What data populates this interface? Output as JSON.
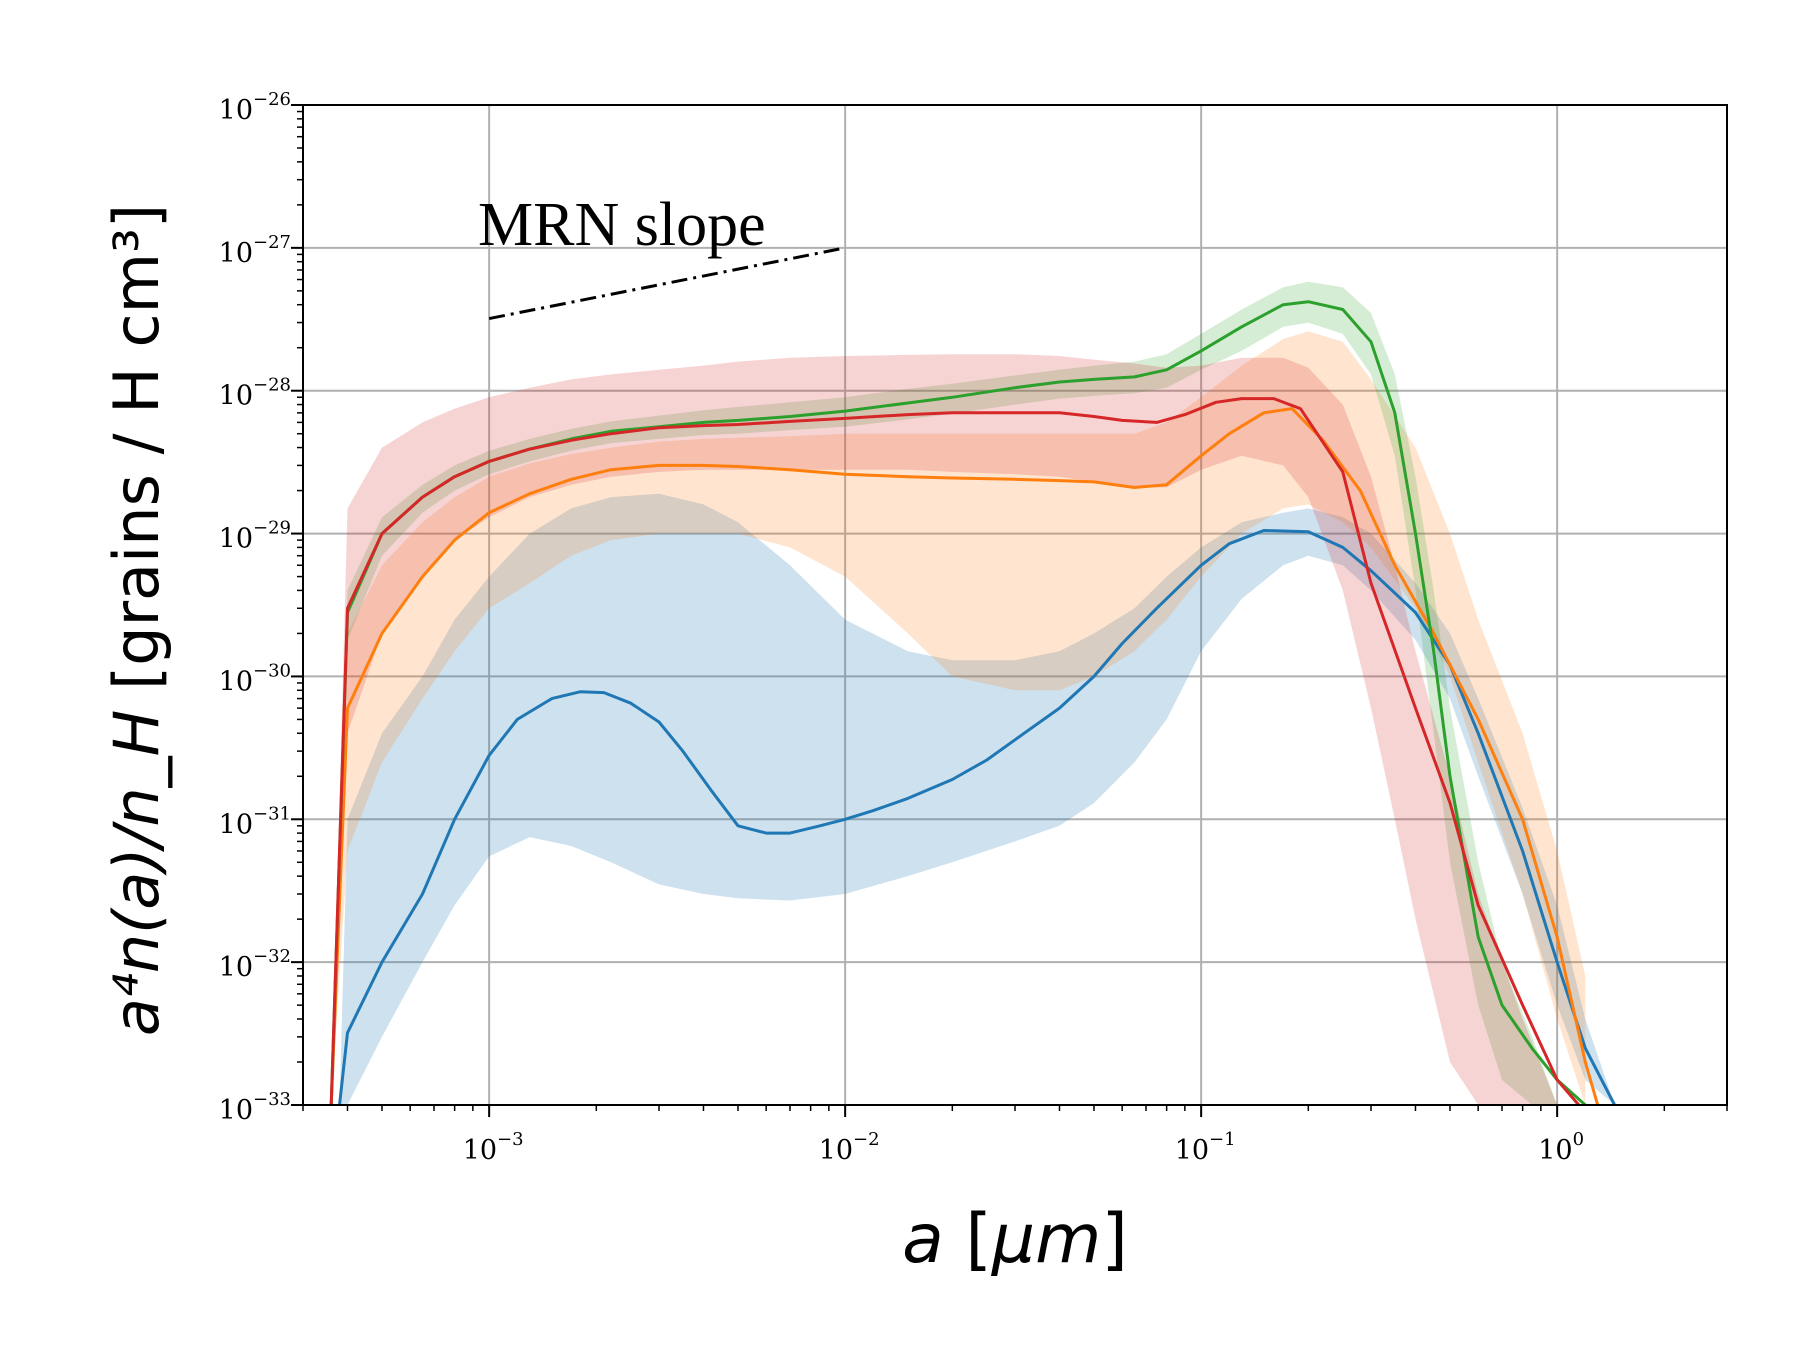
{
  "chart_data": {
    "type": "line",
    "xscale": "log",
    "yscale": "log",
    "xlim": [
      0.0003,
      3.0
    ],
    "ylim": [
      1e-33,
      1e-26
    ],
    "xlabel": {
      "var": "a",
      "unit": "μm"
    },
    "ylabel": {
      "text": "a⁴n(a)/n_H",
      "unit": "grains / H cm³"
    },
    "grid": true,
    "x_tick_exponents": [
      -3,
      -2,
      -1,
      0
    ],
    "y_tick_exponents": [
      -33,
      -32,
      -31,
      -30,
      -29,
      -28,
      -27,
      -26
    ],
    "tick_base": "10",
    "annotation": {
      "text": "MRN slope",
      "line": {
        "x": [
          0.001,
          0.01
        ],
        "y": [
          3.2e-28,
          1e-27
        ]
      }
    },
    "series": [
      {
        "name": "blue",
        "color": "#1f77b4",
        "x": [
          0.00038,
          0.0004,
          0.0005,
          0.00065,
          0.0008,
          0.001,
          0.0012,
          0.0015,
          0.0018,
          0.0021,
          0.0025,
          0.003,
          0.0035,
          0.0042,
          0.005,
          0.006,
          0.007,
          0.0085,
          0.01,
          0.012,
          0.015,
          0.02,
          0.025,
          0.03,
          0.04,
          0.05,
          0.06,
          0.075,
          0.1,
          0.12,
          0.15,
          0.2,
          0.25,
          0.3,
          0.4,
          0.5,
          0.6,
          0.8,
          1.0,
          1.2,
          1.45
        ],
        "y": [
          1e-33,
          3.2e-33,
          1e-32,
          3e-32,
          1e-31,
          2.8e-31,
          5e-31,
          7e-31,
          7.8e-31,
          7.7e-31,
          6.5e-31,
          4.8e-31,
          3e-31,
          1.6e-31,
          9e-32,
          8e-32,
          8e-32,
          9e-32,
          1e-31,
          1.15e-31,
          1.4e-31,
          1.9e-31,
          2.6e-31,
          3.6e-31,
          6e-31,
          1e-30,
          1.7e-30,
          3e-30,
          6e-30,
          8.5e-30,
          1.05e-29,
          1.03e-29,
          8e-30,
          5.5e-30,
          2.8e-30,
          1.2e-30,
          4e-31,
          6e-32,
          1e-32,
          2.5e-33,
          1e-33
        ]
      },
      {
        "name": "orange",
        "color": "#ff7f0e",
        "x": [
          0.00036,
          0.0004,
          0.0005,
          0.00065,
          0.0008,
          0.001,
          0.0013,
          0.0017,
          0.0022,
          0.003,
          0.004,
          0.005,
          0.007,
          0.01,
          0.015,
          0.02,
          0.03,
          0.04,
          0.05,
          0.065,
          0.08,
          0.1,
          0.12,
          0.15,
          0.18,
          0.22,
          0.28,
          0.35,
          0.45,
          0.6,
          0.8,
          1.0,
          1.2,
          1.3
        ],
        "y": [
          1e-33,
          6e-31,
          2e-30,
          5e-30,
          9e-30,
          1.4e-29,
          1.9e-29,
          2.4e-29,
          2.8e-29,
          3e-29,
          3e-29,
          2.95e-29,
          2.8e-29,
          2.6e-29,
          2.5e-29,
          2.45e-29,
          2.4e-29,
          2.35e-29,
          2.3e-29,
          2.1e-29,
          2.2e-29,
          3.5e-29,
          5e-29,
          7e-29,
          7.5e-29,
          4.5e-29,
          2e-29,
          6e-30,
          2e-30,
          5e-31,
          1e-31,
          1.5e-32,
          2e-33,
          1e-33
        ]
      },
      {
        "name": "green",
        "color": "#2ca02c",
        "x": [
          0.00036,
          0.0004,
          0.0005,
          0.00065,
          0.0008,
          0.001,
          0.0013,
          0.0017,
          0.0022,
          0.003,
          0.004,
          0.005,
          0.007,
          0.01,
          0.015,
          0.02,
          0.03,
          0.04,
          0.05,
          0.065,
          0.08,
          0.1,
          0.13,
          0.17,
          0.2,
          0.25,
          0.3,
          0.35,
          0.4,
          0.45,
          0.5,
          0.6,
          0.7,
          0.85,
          1.0,
          1.2
        ],
        "y": [
          1e-33,
          2.8e-30,
          1e-29,
          1.8e-29,
          2.5e-29,
          3.2e-29,
          3.9e-29,
          4.6e-29,
          5.2e-29,
          5.6e-29,
          6e-29,
          6.2e-29,
          6.6e-29,
          7.2e-29,
          8.2e-29,
          9e-29,
          1.05e-28,
          1.15e-28,
          1.2e-28,
          1.25e-28,
          1.4e-28,
          1.9e-28,
          2.8e-28,
          4e-28,
          4.2e-28,
          3.7e-28,
          2.2e-28,
          7e-29,
          1e-29,
          1.5e-30,
          2e-31,
          1.5e-32,
          5e-33,
          2.5e-33,
          1.5e-33,
          1e-33
        ]
      },
      {
        "name": "red",
        "color": "#d62728",
        "x": [
          0.00036,
          0.0004,
          0.0005,
          0.00065,
          0.0008,
          0.001,
          0.0013,
          0.0017,
          0.0022,
          0.003,
          0.004,
          0.005,
          0.007,
          0.01,
          0.015,
          0.02,
          0.03,
          0.04,
          0.05,
          0.06,
          0.075,
          0.09,
          0.11,
          0.13,
          0.16,
          0.19,
          0.25,
          0.3,
          0.4,
          0.5,
          0.6,
          0.8,
          1.0,
          1.15
        ],
        "y": [
          1e-33,
          3e-30,
          1e-29,
          1.8e-29,
          2.5e-29,
          3.2e-29,
          3.9e-29,
          4.5e-29,
          5e-29,
          5.5e-29,
          5.7e-29,
          5.8e-29,
          6.1e-29,
          6.4e-29,
          6.8e-29,
          7e-29,
          7e-29,
          7e-29,
          6.6e-29,
          6.2e-29,
          6e-29,
          6.8e-29,
          8.3e-29,
          8.8e-29,
          8.8e-29,
          7.5e-29,
          2.7e-29,
          4.5e-30,
          6e-31,
          1.3e-31,
          2.5e-32,
          5e-33,
          1.5e-33,
          1e-33
        ]
      }
    ],
    "bands": [
      {
        "name": "blue-band",
        "color": "#1f77b4",
        "opacity": 0.22,
        "x": [
          0.00038,
          0.0004,
          0.0005,
          0.00065,
          0.0008,
          0.001,
          0.0013,
          0.0017,
          0.0022,
          0.003,
          0.004,
          0.005,
          0.007,
          0.01,
          0.015,
          0.02,
          0.03,
          0.04,
          0.05,
          0.065,
          0.08,
          0.1,
          0.13,
          0.17,
          0.2,
          0.25,
          0.3,
          0.4,
          0.5,
          0.6,
          0.8,
          1.0,
          1.2,
          1.45
        ],
        "upper": [
          1e-33,
          1e-31,
          4e-31,
          1e-30,
          2.5e-30,
          5e-30,
          1e-29,
          1.5e-29,
          1.8e-29,
          1.9e-29,
          1.6e-29,
          1.2e-29,
          6e-30,
          2.5e-30,
          1.5e-30,
          1.3e-30,
          1.3e-30,
          1.5e-30,
          2e-30,
          3e-30,
          5e-30,
          8e-30,
          1.2e-29,
          1.4e-29,
          1.5e-29,
          1.3e-29,
          1e-29,
          4.5e-30,
          2e-30,
          7e-31,
          1.2e-31,
          2.5e-32,
          4e-33,
          1e-33
        ],
        "lower": [
          1e-33,
          1e-33,
          3e-33,
          1e-32,
          2.5e-32,
          5.5e-32,
          7.5e-32,
          6.5e-32,
          5e-32,
          3.5e-32,
          3e-32,
          2.8e-32,
          2.7e-32,
          3e-32,
          4e-32,
          5e-32,
          7e-32,
          9e-32,
          1.3e-31,
          2.5e-31,
          5e-31,
          1.5e-30,
          3.5e-30,
          6e-30,
          7e-30,
          6e-30,
          4e-30,
          1.8e-30,
          7e-31,
          2e-31,
          3e-32,
          5e-33,
          1.5e-33,
          1e-33
        ]
      },
      {
        "name": "orange-band",
        "color": "#ff7f0e",
        "opacity": 0.2,
        "x": [
          0.00036,
          0.0004,
          0.0005,
          0.00065,
          0.0008,
          0.001,
          0.0013,
          0.0017,
          0.0022,
          0.003,
          0.004,
          0.005,
          0.007,
          0.01,
          0.015,
          0.02,
          0.03,
          0.04,
          0.05,
          0.065,
          0.08,
          0.1,
          0.13,
          0.17,
          0.2,
          0.25,
          0.3,
          0.4,
          0.5,
          0.6,
          0.8,
          1.0,
          1.2
        ],
        "upper": [
          1e-33,
          2e-30,
          6e-30,
          1.2e-29,
          1.8e-29,
          2.5e-29,
          3.1e-29,
          3.6e-29,
          4e-29,
          4.4e-29,
          4.6e-29,
          4.7e-29,
          4.8e-29,
          5e-29,
          5e-29,
          5e-29,
          5e-29,
          5e-29,
          5e-29,
          5e-29,
          6e-29,
          9e-29,
          1.5e-28,
          2.3e-28,
          2.6e-28,
          2.2e-28,
          1.2e-28,
          4e-29,
          1e-29,
          2.5e-30,
          4e-31,
          6e-32,
          8e-33
        ],
        "lower": [
          1e-33,
          6e-32,
          2.5e-31,
          7e-31,
          1.5e-30,
          3e-30,
          4.5e-30,
          7e-30,
          9e-30,
          1e-29,
          1e-29,
          1e-29,
          8e-30,
          5e-30,
          2e-30,
          1e-30,
          8e-31,
          8e-31,
          1e-30,
          1.5e-30,
          2.5e-30,
          5e-30,
          1e-29,
          1.5e-29,
          1.6e-29,
          1.2e-29,
          8e-30,
          3e-30,
          1e-30,
          2.5e-31,
          3e-32,
          4e-33,
          1e-33
        ]
      },
      {
        "name": "green-band",
        "color": "#2ca02c",
        "opacity": 0.2,
        "x": [
          0.00036,
          0.0004,
          0.0005,
          0.00065,
          0.0008,
          0.001,
          0.0013,
          0.0017,
          0.0022,
          0.003,
          0.004,
          0.005,
          0.007,
          0.01,
          0.015,
          0.02,
          0.03,
          0.04,
          0.05,
          0.065,
          0.08,
          0.1,
          0.13,
          0.17,
          0.2,
          0.25,
          0.3,
          0.35,
          0.4,
          0.45,
          0.5,
          0.6,
          0.7,
          0.85,
          1.0
        ],
        "upper": [
          1e-33,
          4e-30,
          1.3e-29,
          2.2e-29,
          3e-29,
          3.8e-29,
          4.6e-29,
          5.4e-29,
          6.1e-29,
          6.7e-29,
          7.3e-29,
          7.7e-29,
          8.3e-29,
          9e-29,
          1.03e-28,
          1.12e-28,
          1.28e-28,
          1.4e-28,
          1.5e-28,
          1.6e-28,
          1.8e-28,
          2.5e-28,
          3.7e-28,
          5.3e-28,
          5.8e-28,
          5.3e-28,
          3.5e-28,
          1.3e-28,
          2.5e-29,
          4e-30,
          6e-31,
          5e-32,
          1e-32,
          3e-33,
          1e-33
        ],
        "lower": [
          1e-33,
          1.8e-30,
          7e-30,
          1.4e-29,
          2e-29,
          2.6e-29,
          3.2e-29,
          3.8e-29,
          4.3e-29,
          4.6e-29,
          4.9e-29,
          5e-29,
          5.3e-29,
          5.6e-29,
          6.3e-29,
          6.9e-29,
          8e-29,
          8.8e-29,
          9.2e-29,
          9.6e-29,
          1.05e-28,
          1.4e-28,
          1.9e-28,
          2.8e-28,
          3e-28,
          2.5e-28,
          1.3e-28,
          3.5e-29,
          4e-30,
          4e-31,
          5e-32,
          5e-33,
          1.5e-33,
          1e-33,
          1e-33
        ]
      },
      {
        "name": "red-band",
        "color": "#d62728",
        "opacity": 0.2,
        "x": [
          0.00036,
          0.0004,
          0.0005,
          0.00065,
          0.0008,
          0.001,
          0.0013,
          0.0017,
          0.0022,
          0.003,
          0.004,
          0.005,
          0.007,
          0.01,
          0.015,
          0.02,
          0.03,
          0.04,
          0.05,
          0.065,
          0.08,
          0.1,
          0.13,
          0.17,
          0.2,
          0.25,
          0.3,
          0.35,
          0.4,
          0.5,
          0.6,
          0.8,
          1.0
        ],
        "upper": [
          1e-33,
          1.5e-29,
          4e-29,
          6e-29,
          7.5e-29,
          9e-29,
          1.05e-28,
          1.2e-28,
          1.3e-28,
          1.4e-28,
          1.5e-28,
          1.6e-28,
          1.7e-28,
          1.75e-28,
          1.78e-28,
          1.8e-28,
          1.8e-28,
          1.75e-28,
          1.65e-28,
          1.55e-28,
          1.45e-28,
          1.5e-28,
          1.7e-28,
          1.7e-28,
          1.45e-28,
          8e-29,
          2.5e-29,
          6e-30,
          1.5e-30,
          2e-31,
          3e-32,
          4e-33,
          1e-33
        ],
        "lower": [
          1e-33,
          4e-31,
          2e-30,
          5e-30,
          9e-30,
          1.3e-29,
          1.8e-29,
          2.2e-29,
          2.5e-29,
          2.7e-29,
          2.8e-29,
          2.8e-29,
          2.8e-29,
          2.8e-29,
          2.8e-29,
          2.7e-29,
          2.6e-29,
          2.5e-29,
          2.3e-29,
          2.1e-29,
          2.1e-29,
          2.8e-29,
          3.5e-29,
          3e-29,
          1.8e-29,
          4e-30,
          6e-31,
          1e-31,
          2e-32,
          2e-33,
          1e-33,
          1e-33,
          1e-33
        ]
      }
    ]
  }
}
